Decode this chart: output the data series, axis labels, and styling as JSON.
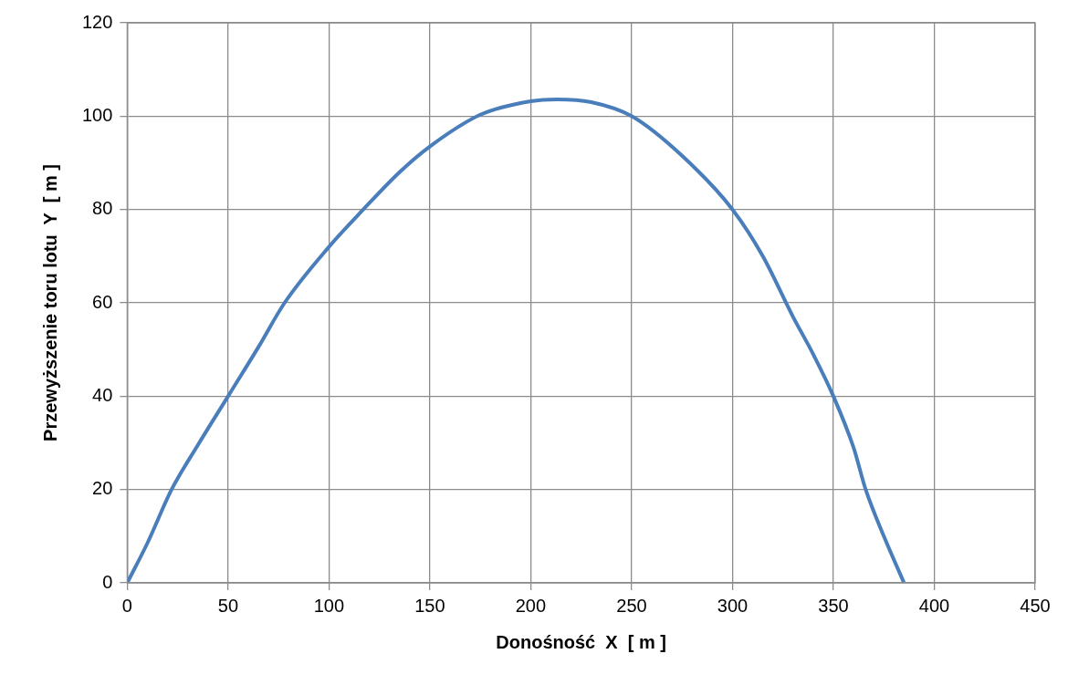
{
  "chart_data": {
    "type": "line",
    "xlabel": "Donośność  X  [ m ]",
    "ylabel": "Przewyższenie toru lotu  Y  [ m ]",
    "series": [
      {
        "color": "#4a7ebb",
        "x": [
          0,
          10,
          22,
          35,
          50,
          65,
          78,
          100,
          117,
          135,
          150,
          175,
          200,
          213,
          230,
          250,
          275,
          300,
          315,
          330,
          340,
          350,
          360,
          366,
          375,
          385
        ],
        "values": [
          0,
          8.5,
          20,
          29.5,
          40,
          50.5,
          60,
          72,
          80,
          88,
          93.5,
          100.3,
          103.2,
          103.6,
          103,
          100,
          91.5,
          80,
          70,
          57,
          49,
          40,
          29,
          20,
          10,
          0
        ]
      }
    ],
    "xlim": [
      0,
      450
    ],
    "xticks": [
      0,
      50,
      100,
      150,
      200,
      250,
      300,
      350,
      400,
      450
    ],
    "ylim": [
      0,
      120
    ],
    "yticks": [
      0,
      20,
      40,
      60,
      80,
      100,
      120
    ],
    "grid": true,
    "legend": false,
    "marker": "none",
    "line_style": "solid"
  }
}
